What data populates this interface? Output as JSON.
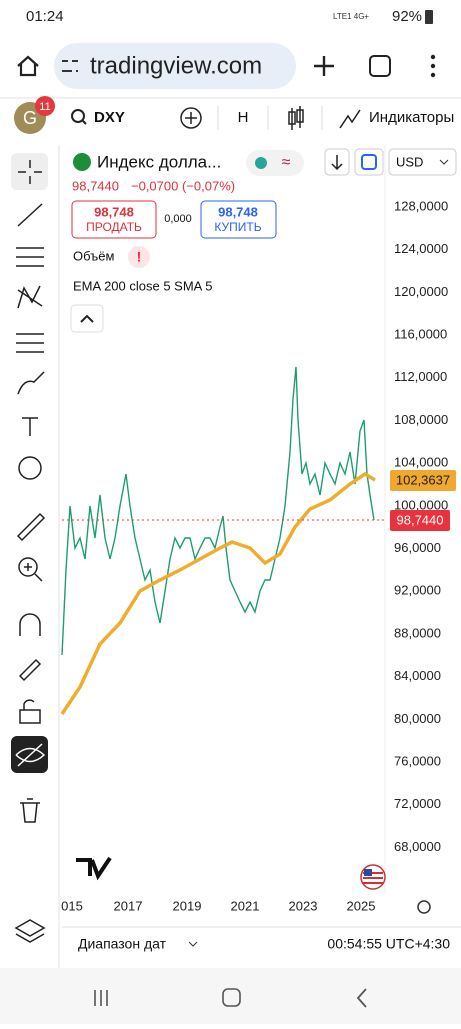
{
  "status": {
    "time": "01:24",
    "network": "LTE1 4G+",
    "battery": "92%"
  },
  "browser": {
    "url": "tradingview.com"
  },
  "toolbar": {
    "avatar": "G",
    "badge": "11",
    "symbol": "DXY",
    "interval": "H",
    "indicators": "Индикаторы"
  },
  "legend": {
    "name": "Индекс долла...",
    "price": "98,7440",
    "change": "−0,0700 (−0,07%)",
    "sell_price": "98,748",
    "sell_label": "ПРОДАТЬ",
    "spread": "0,000",
    "buy_price": "98,748",
    "buy_label": "КУПИТЬ",
    "volume": "Объём",
    "indicator": "EMA 200 close 5 SMA 5",
    "currency": "USD"
  },
  "axis": {
    "price_labels": [
      "128,0000",
      "124,0000",
      "120,0000",
      "116,0000",
      "112,0000",
      "108,0000",
      "104,0000",
      "100,0000",
      "96,0000",
      "92,0000",
      "88,0000",
      "84,0000",
      "80,0000",
      "76,0000",
      "72,0000",
      "68,0000"
    ],
    "year_labels": [
      "015",
      "2017",
      "2019",
      "2021",
      "2023",
      "2025"
    ],
    "ema_label": "102,3637",
    "price_label": "98,7440"
  },
  "bottom": {
    "range": "Диапазон дат",
    "clock": "00:54:55 UTC+4:30"
  }
}
